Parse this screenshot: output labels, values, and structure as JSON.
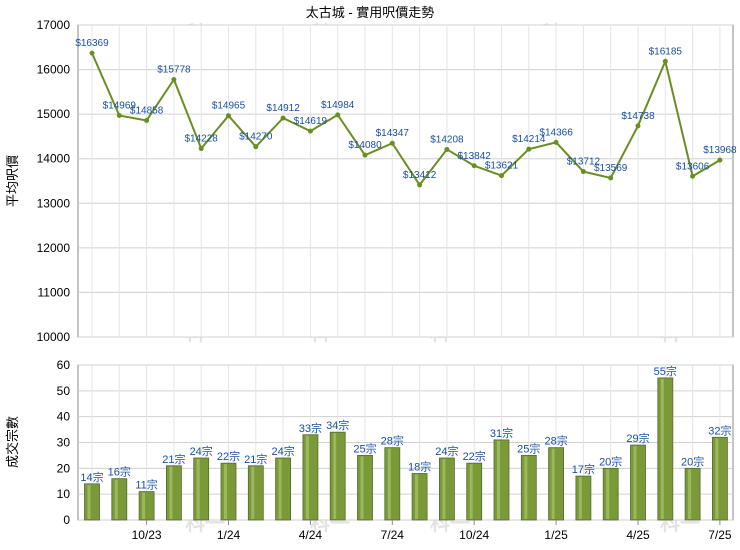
{
  "chart_data": [
    {
      "type": "line",
      "title": "太古城 - 實用呎價走勢",
      "ylabel": "平均呎價",
      "ylim": [
        10000,
        17000
      ],
      "yticks": [
        10000,
        11000,
        12000,
        13000,
        14000,
        15000,
        16000,
        17000
      ],
      "grid": true,
      "color": "#6b8e23",
      "values": [
        16369,
        14969,
        14858,
        15778,
        14228,
        14965,
        14270,
        14912,
        14619,
        14984,
        14080,
        14347,
        13412,
        14208,
        13842,
        13621,
        14214,
        14366,
        13712,
        13569,
        14738,
        16185,
        13606,
        13968
      ],
      "labels": [
        "$16369",
        "$14969",
        "$14858",
        "$15778",
        "$14228",
        "$14965",
        "$14270",
        "$14912",
        "$14619",
        "$14984",
        "$14080",
        "$14347",
        "$13412",
        "$14208",
        "$13842",
        "$13621",
        "$14214",
        "$14366",
        "$13712",
        "$13569",
        "$14738",
        "$16185",
        "$13606",
        "$13968"
      ]
    },
    {
      "type": "bar",
      "ylabel": "成交宗數",
      "ylim": [
        0,
        60
      ],
      "yticks": [
        0,
        10,
        20,
        30,
        40,
        50,
        60
      ],
      "grid": true,
      "color": "#7a9a3a",
      "values": [
        14,
        16,
        11,
        21,
        24,
        22,
        21,
        24,
        33,
        34,
        25,
        28,
        18,
        24,
        22,
        31,
        25,
        28,
        17,
        20,
        29,
        55,
        20,
        32
      ],
      "labels": [
        "14宗",
        "16宗",
        "11宗",
        "21宗",
        "24宗",
        "22宗",
        "21宗",
        "24宗",
        "33宗",
        "34宗",
        "25宗",
        "28宗",
        "18宗",
        "24宗",
        "22宗",
        "31宗",
        "25宗",
        "28宗",
        "17宗",
        "20宗",
        "29宗",
        "55宗",
        "20宗",
        "32宗"
      ],
      "xticks": [
        {
          "index": 2,
          "label": "10/23"
        },
        {
          "index": 5,
          "label": "1/24"
        },
        {
          "index": 8,
          "label": "4/24"
        },
        {
          "index": 11,
          "label": "7/24"
        },
        {
          "index": 14,
          "label": "10/24"
        },
        {
          "index": 17,
          "label": "1/25"
        },
        {
          "index": 20,
          "label": "4/25"
        },
        {
          "index": 23,
          "label": "7/25"
        }
      ]
    }
  ],
  "watermark": "科一"
}
